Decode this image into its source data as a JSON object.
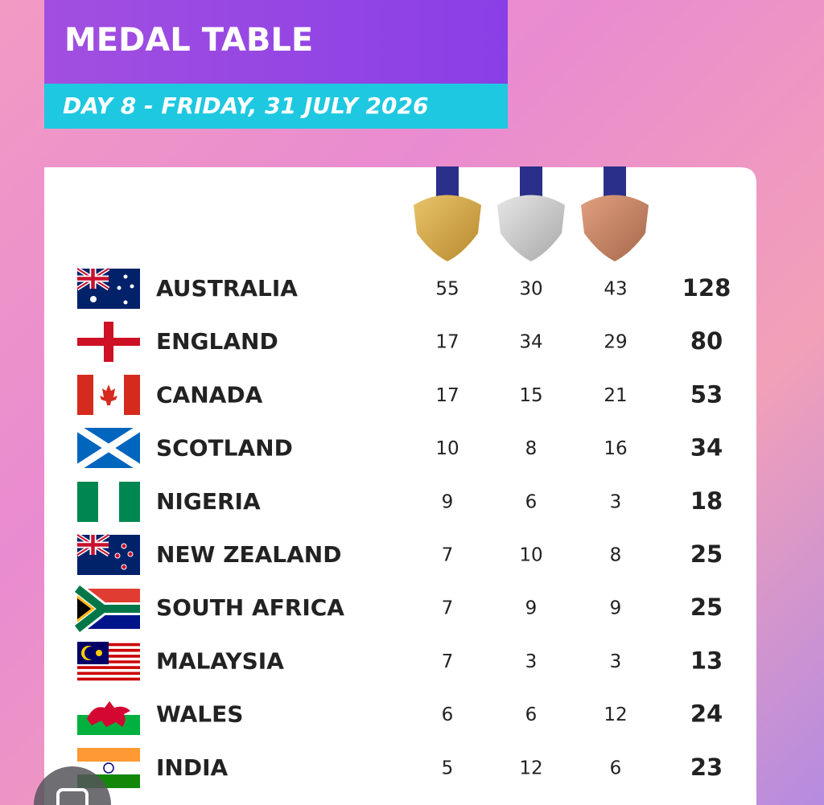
{
  "header": {
    "title": "MEDAL TABLE",
    "subtitle": "DAY 8 - FRIDAY, 31 JULY 2026"
  },
  "table": {
    "rows": [
      [
        "AUSTRALIA",
        55,
        30,
        43,
        128
      ],
      [
        "ENGLAND",
        17,
        34,
        29,
        80
      ],
      [
        "CANADA",
        17,
        15,
        21,
        53
      ],
      [
        "SCOTLAND",
        10,
        8,
        16,
        34
      ],
      [
        "NIGERIA",
        9,
        6,
        3,
        18
      ],
      [
        "NEW ZEALAND",
        7,
        10,
        8,
        25
      ],
      [
        "SOUTH AFRICA",
        7,
        9,
        9,
        25
      ],
      [
        "MALAYSIA",
        7,
        3,
        3,
        13
      ],
      [
        "WALES",
        6,
        6,
        12,
        24
      ],
      [
        "INDIA",
        5,
        12,
        6,
        23
      ]
    ]
  }
}
